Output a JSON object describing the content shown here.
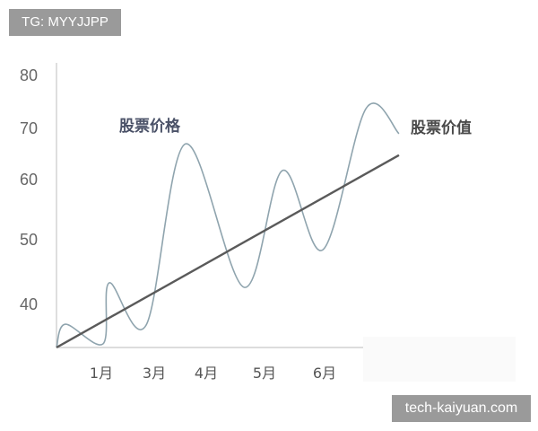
{
  "watermarks": {
    "top_left": "TG: MYYJJPP",
    "bottom_right": "tech-kaiyuan.com"
  },
  "chart_data": {
    "type": "line",
    "title": "",
    "xlabel": "",
    "ylabel": "",
    "x_ticks": [
      {
        "value": 1,
        "label": "1月"
      },
      {
        "value": 3,
        "label": "3月"
      },
      {
        "value": 4,
        "label": "4月"
      },
      {
        "value": 5,
        "label": "5月"
      },
      {
        "value": 6,
        "label": "6月"
      }
    ],
    "y_ticks": [
      40,
      50,
      60,
      70,
      80
    ],
    "grid": false,
    "colors": {
      "price": "#8fa4ae",
      "value": "#5a5a5a",
      "price_label": "#4b5268",
      "value_label": "#4a4a4a"
    },
    "series": [
      {
        "name": "股票价格",
        "style": "smooth",
        "points": [
          [
            0,
            33
          ],
          [
            0.2,
            36.7
          ],
          [
            1.07,
            33.6
          ],
          [
            1.3,
            43.2
          ],
          [
            2.7,
            36.6
          ],
          [
            3.6,
            66.8
          ],
          [
            4.65,
            42.5
          ],
          [
            5.3,
            61.6
          ],
          [
            5.97,
            48.3
          ],
          [
            6.68,
            73.6
          ],
          [
            7.22,
            68.8
          ]
        ]
      },
      {
        "name": "股票价值",
        "style": "straight",
        "points": [
          [
            0,
            33
          ],
          [
            7.22,
            64.6
          ]
        ]
      }
    ]
  }
}
